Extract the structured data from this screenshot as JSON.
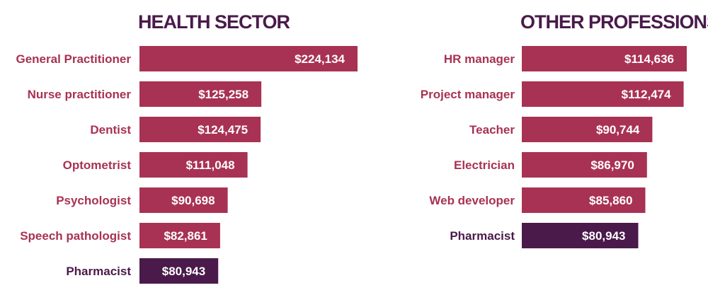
{
  "colors": {
    "bar": "#a83253",
    "highlight_bar": "#4a1a4a",
    "label": "#a83253",
    "highlight_label": "#4a1a4a",
    "title": "#4a1a4a"
  },
  "chart_data": [
    {
      "type": "bar",
      "orientation": "horizontal",
      "title": "HEALTH SECTOR",
      "categories": [
        "General Practitioner",
        "Nurse practitioner",
        "Dentist",
        "Optometrist",
        "Psychologist",
        "Speech pathologist",
        "Pharmacist"
      ],
      "values": [
        224134,
        125258,
        124475,
        111048,
        90698,
        82861,
        80943
      ],
      "value_labels": [
        "$224,134",
        "$125,258",
        "$124,475",
        "$111,048",
        "$90,698",
        "$82,861",
        "$80,943"
      ],
      "highlight": "Pharmacist"
    },
    {
      "type": "bar",
      "orientation": "horizontal",
      "title": "OTHER PROFESSIONS",
      "categories": [
        "HR manager",
        "Project manager",
        "Teacher",
        "Electrician",
        "Web developer",
        "Pharmacist"
      ],
      "values": [
        114636,
        112474,
        90744,
        86970,
        85860,
        80943
      ],
      "value_labels": [
        "$114,636",
        "$112,474",
        "$90,744",
        "$86,970",
        "$85,860",
        "$80,943"
      ],
      "highlight": "Pharmacist"
    }
  ]
}
